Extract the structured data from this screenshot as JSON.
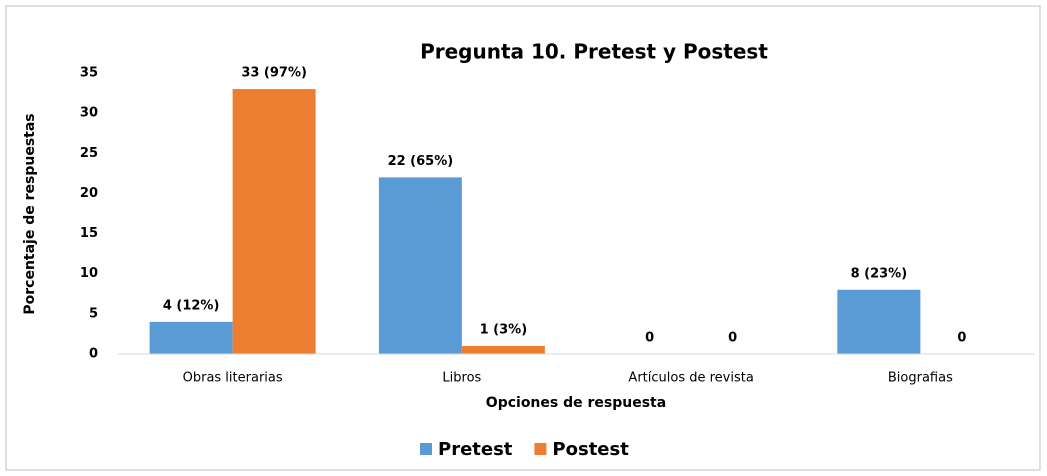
{
  "chart_data": {
    "type": "bar",
    "title": "Pregunta 10. Pretest y Postest",
    "categories": [
      "Obras literarias",
      "Libros",
      "Artículos de revista",
      "Biografias"
    ],
    "series": [
      {
        "name": "Pretest",
        "color": "#5b9bd5",
        "values": [
          4,
          22,
          0,
          8
        ],
        "value_labels": [
          "4 (12%)",
          "22 (65%)",
          "0",
          "8 (23%)"
        ]
      },
      {
        "name": "Postest",
        "color": "#ed7d31",
        "values": [
          33,
          1,
          0,
          0
        ],
        "value_labels": [
          "33 (97%)",
          "1 (3%)",
          "0",
          "0"
        ]
      }
    ],
    "ylim": [
      0,
      35
    ],
    "yticks": [
      0,
      5,
      10,
      15,
      20,
      25,
      30,
      35
    ],
    "xlabel": "Opciones de respuesta",
    "ylabel": "Porcentaje de respuestas",
    "grid": false,
    "legend": "bottom"
  }
}
